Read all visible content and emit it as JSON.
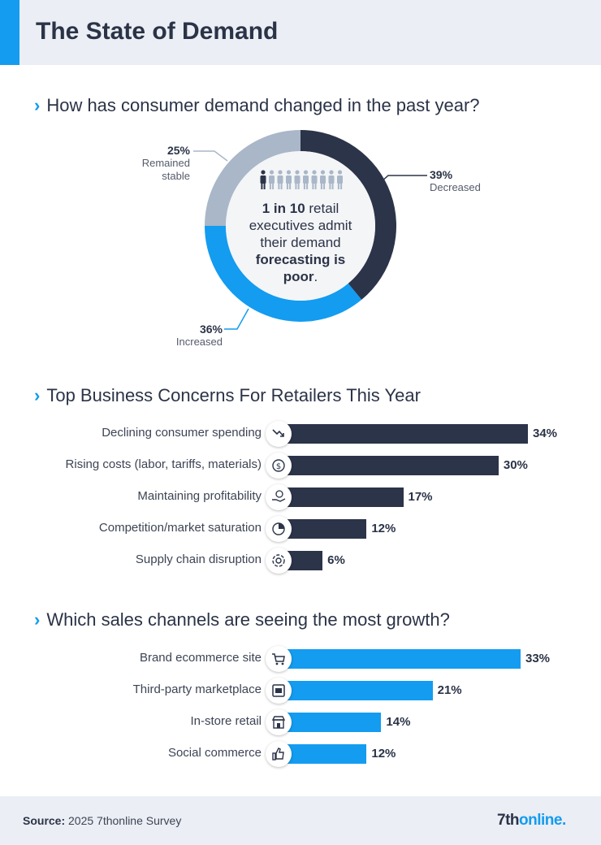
{
  "header": {
    "title": "The State of Demand"
  },
  "colors": {
    "dark": "#2c3449",
    "blue": "#139cf0",
    "gray": "#a9b7c8",
    "header_bg": "#ebeef4"
  },
  "section1": {
    "title": "How has consumer demand changed in the past year?",
    "center": {
      "part1": "1 in 10",
      "part2": " retail executives admit their demand ",
      "part3": "forecasting is poor",
      "part4": "."
    },
    "people_icons": {
      "highlighted": 1,
      "total": 10
    },
    "chart_data": {
      "type": "pie",
      "title": "How has consumer demand changed in the past year?",
      "slices": [
        {
          "label": "Decreased",
          "value": 39,
          "display": "39%",
          "color": "#2c3449"
        },
        {
          "label": "Increased",
          "value": 36,
          "display": "36%",
          "color": "#139cf0"
        },
        {
          "label": "Remained stable",
          "value": 25,
          "display": "25%",
          "color": "#a9b7c8"
        }
      ],
      "remained_label_lines": [
        "Remained",
        "stable"
      ]
    }
  },
  "section2": {
    "title": "Top Business Concerns For Retailers This Year",
    "chart_data": {
      "type": "bar",
      "orientation": "horizontal",
      "xlim": [
        0,
        34
      ],
      "categories": [
        "Declining consumer spending",
        "Rising costs (labor, tariffs, materials)",
        "Maintaining profitability",
        "Competition/market saturation",
        "Supply chain disruption"
      ],
      "values": [
        34,
        30,
        17,
        12,
        6
      ],
      "labels": [
        "34%",
        "30%",
        "17%",
        "12%",
        "6%"
      ],
      "icons": [
        "trend-down-icon",
        "dollar-cycle-icon",
        "hand-coin-icon",
        "pie-chart-icon",
        "gear-cycle-icon"
      ],
      "color": "#2c3449"
    }
  },
  "section3": {
    "title": "Which sales channels are seeing the most growth?",
    "chart_data": {
      "type": "bar",
      "orientation": "horizontal",
      "xlim": [
        0,
        33
      ],
      "categories": [
        "Brand ecommerce site",
        "Third-party marketplace",
        "In-store retail",
        "Social commerce"
      ],
      "values": [
        33,
        21,
        14,
        12
      ],
      "labels": [
        "33%",
        "21%",
        "14%",
        "12%"
      ],
      "icons": [
        "cart-icon",
        "marketplace-icon",
        "storefront-icon",
        "thumbs-up-icon"
      ],
      "color": "#139cf0"
    }
  },
  "footer": {
    "source_label": "Source:",
    "source_text": " 2025 7thonline Survey",
    "logo_main": "7th",
    "logo_rest": "online."
  }
}
